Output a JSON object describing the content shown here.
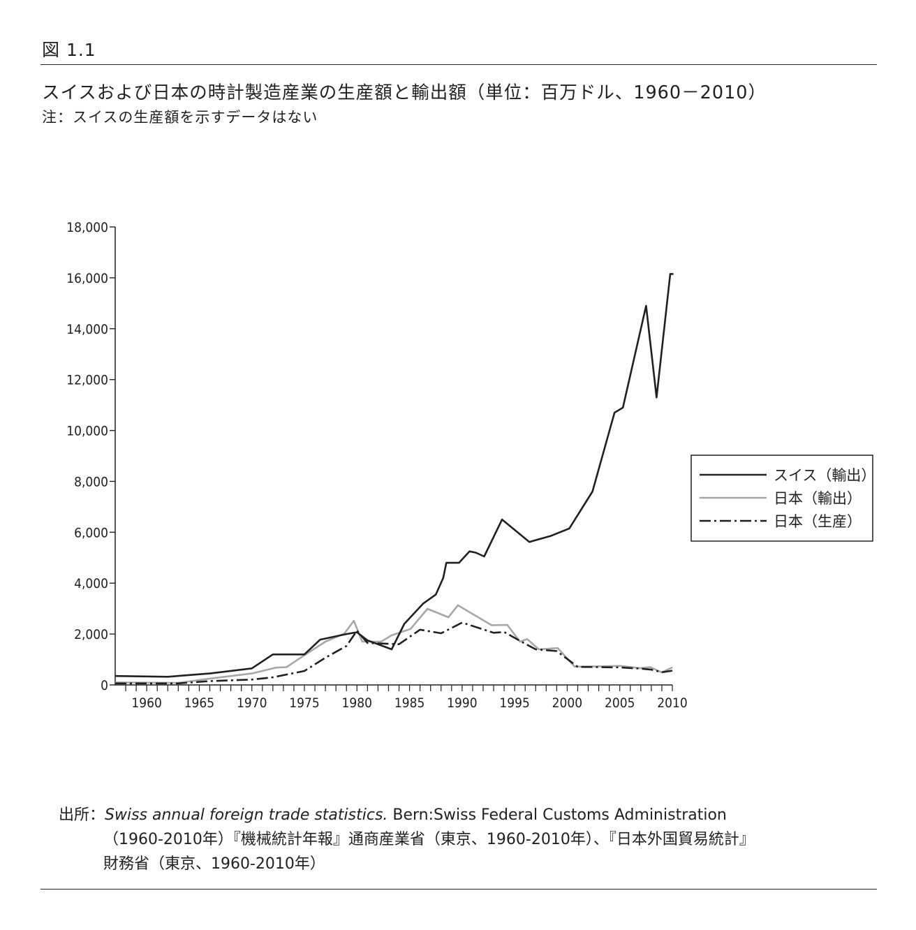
{
  "figure_label": "図 1.1",
  "title": "スイスおよび日本の時計製造産業の生産額と輸出額（単位：百万ドル、1960－2010）",
  "note": "注：スイスの生産額を示すデータはない",
  "source": {
    "prefix": "出所：",
    "italic": "Swiss annual foreign trade statistics.",
    "rest1": " Bern:Swiss Federal Customs Administration",
    "line2": "（1960-2010年）『機械統計年報』通商産業省（東京、1960-2010年）、『日本外国貿易統計』",
    "line3": "財務省（東京、1960-2010年）"
  },
  "colors": {
    "swiss_export": "#231f20",
    "japan_export": "#a7a7a7",
    "japan_production": "#231f20"
  },
  "chart_data": {
    "type": "line",
    "title": "",
    "xlabel": "",
    "ylabel": "",
    "xlim": [
      1957,
      2010
    ],
    "ylim": [
      0,
      18000
    ],
    "x_ticks": [
      1960,
      1965,
      1970,
      1975,
      1980,
      1985,
      1990,
      1995,
      2000,
      2005,
      2010
    ],
    "x_tick_labels": [
      "1960",
      "1965",
      "1970",
      "1975",
      "1980",
      "1985",
      "1990",
      "1995",
      "2000",
      "2005",
      "2010"
    ],
    "y_ticks": [
      0,
      2000,
      4000,
      6000,
      8000,
      10000,
      12000,
      14000,
      16000,
      18000
    ],
    "y_tick_labels": [
      "0",
      "2,000",
      "4,000",
      "6,000",
      "8,000",
      "10,000",
      "12,000",
      "14,000",
      "16,000",
      "18,000"
    ],
    "legend_position": "right",
    "series": [
      {
        "name": "スイス（輸出）",
        "color": "#231f20",
        "style": "solid",
        "x": [
          1957,
          1962,
          1966,
          1970,
          1972,
          1975,
          1976.5,
          1979,
          1980,
          1981,
          1983.3,
          1984.5,
          1986.3,
          1987.5,
          1988.2,
          1988.5,
          1989.7,
          1990.7,
          1991.3,
          1992.1,
          1993.8,
          1996.4,
          1998.4,
          2000.2,
          2002.4,
          2004.5,
          2005.3,
          2007.5,
          2008.5,
          2009.8,
          2010.1
        ],
        "y": [
          350,
          320,
          450,
          650,
          1200,
          1200,
          1780,
          2000,
          2070,
          1750,
          1400,
          2400,
          3200,
          3550,
          4200,
          4800,
          4800,
          5250,
          5200,
          5050,
          6500,
          5620,
          5850,
          6150,
          7600,
          10700,
          10900,
          14900,
          11300,
          16150,
          16150
        ]
      },
      {
        "name": "日本（輸出）",
        "color": "#a7a7a7",
        "style": "solid",
        "x": [
          1957,
          1963,
          1966,
          1970,
          1972.3,
          1973.3,
          1975,
          1977,
          1978.8,
          1979.7,
          1980.5,
          1982.3,
          1983.3,
          1985.1,
          1986.7,
          1988.7,
          1989.6,
          1992.8,
          1994.3,
          1995.5,
          1996.2,
          1997.3,
          1999.1,
          2000.7,
          2003,
          2005,
          2006.9,
          2007.9,
          2009,
          2010
        ],
        "y": [
          100,
          80,
          250,
          450,
          680,
          700,
          1170,
          1700,
          2020,
          2520,
          1700,
          1700,
          1950,
          2200,
          2990,
          2660,
          3130,
          2350,
          2360,
          1700,
          1800,
          1400,
          1450,
          720,
          730,
          750,
          660,
          700,
          490,
          690
        ]
      },
      {
        "name": "日本（生産）",
        "color": "#231f20",
        "style": "dashdot",
        "x": [
          1957,
          1963,
          1966,
          1970,
          1972,
          1975,
          1977,
          1979,
          1980,
          1981,
          1984,
          1986,
          1988,
          1990,
          1993,
          1994,
          1996,
          1997,
          1999,
          2001,
          2005,
          2007,
          2008,
          2009,
          2010
        ],
        "y": [
          60,
          60,
          150,
          210,
          300,
          550,
          1070,
          1530,
          2130,
          1650,
          1600,
          2170,
          2030,
          2450,
          2050,
          2080,
          1620,
          1400,
          1330,
          710,
          690,
          640,
          600,
          500,
          560
        ]
      }
    ]
  }
}
